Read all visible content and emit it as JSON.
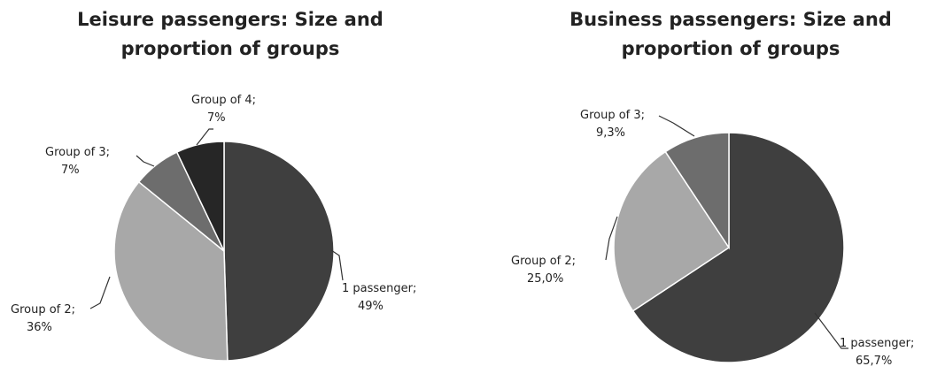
{
  "chart_data": [
    {
      "type": "pie",
      "title_lines": [
        "Leisure passengers: Size and",
        "proportion of groups"
      ],
      "slices": [
        {
          "name": "1 passenger",
          "value": 49,
          "label_line1": "1 passenger;",
          "label_line2": "49%",
          "color": "#3f3f3f"
        },
        {
          "name": "Group of 2",
          "value": 36,
          "label_line1": "Group of 2;",
          "label_line2": "36%",
          "color": "#a8a8a8"
        },
        {
          "name": "Group of 3",
          "value": 7,
          "label_line1": "Group of 3;",
          "label_line2": "7%",
          "color": "#6d6d6d"
        },
        {
          "name": "Group of 4",
          "value": 7,
          "label_line1": "Group of 4;",
          "label_line2": "7%",
          "color": "#262626"
        }
      ]
    },
    {
      "type": "pie",
      "title_lines": [
        "Business passengers: Size and",
        "proportion of groups"
      ],
      "slices": [
        {
          "name": "1 passenger",
          "value": 65.7,
          "label_line1": "1 passenger;",
          "label_line2": "65,7%",
          "color": "#3f3f3f"
        },
        {
          "name": "Group of 2",
          "value": 25.0,
          "label_line1": "Group of 2;",
          "label_line2": "25,0%",
          "color": "#a8a8a8"
        },
        {
          "name": "Group of 3",
          "value": 9.3,
          "label_line1": "Group of 3;",
          "label_line2": "9,3%",
          "color": "#6d6d6d"
        }
      ]
    }
  ]
}
